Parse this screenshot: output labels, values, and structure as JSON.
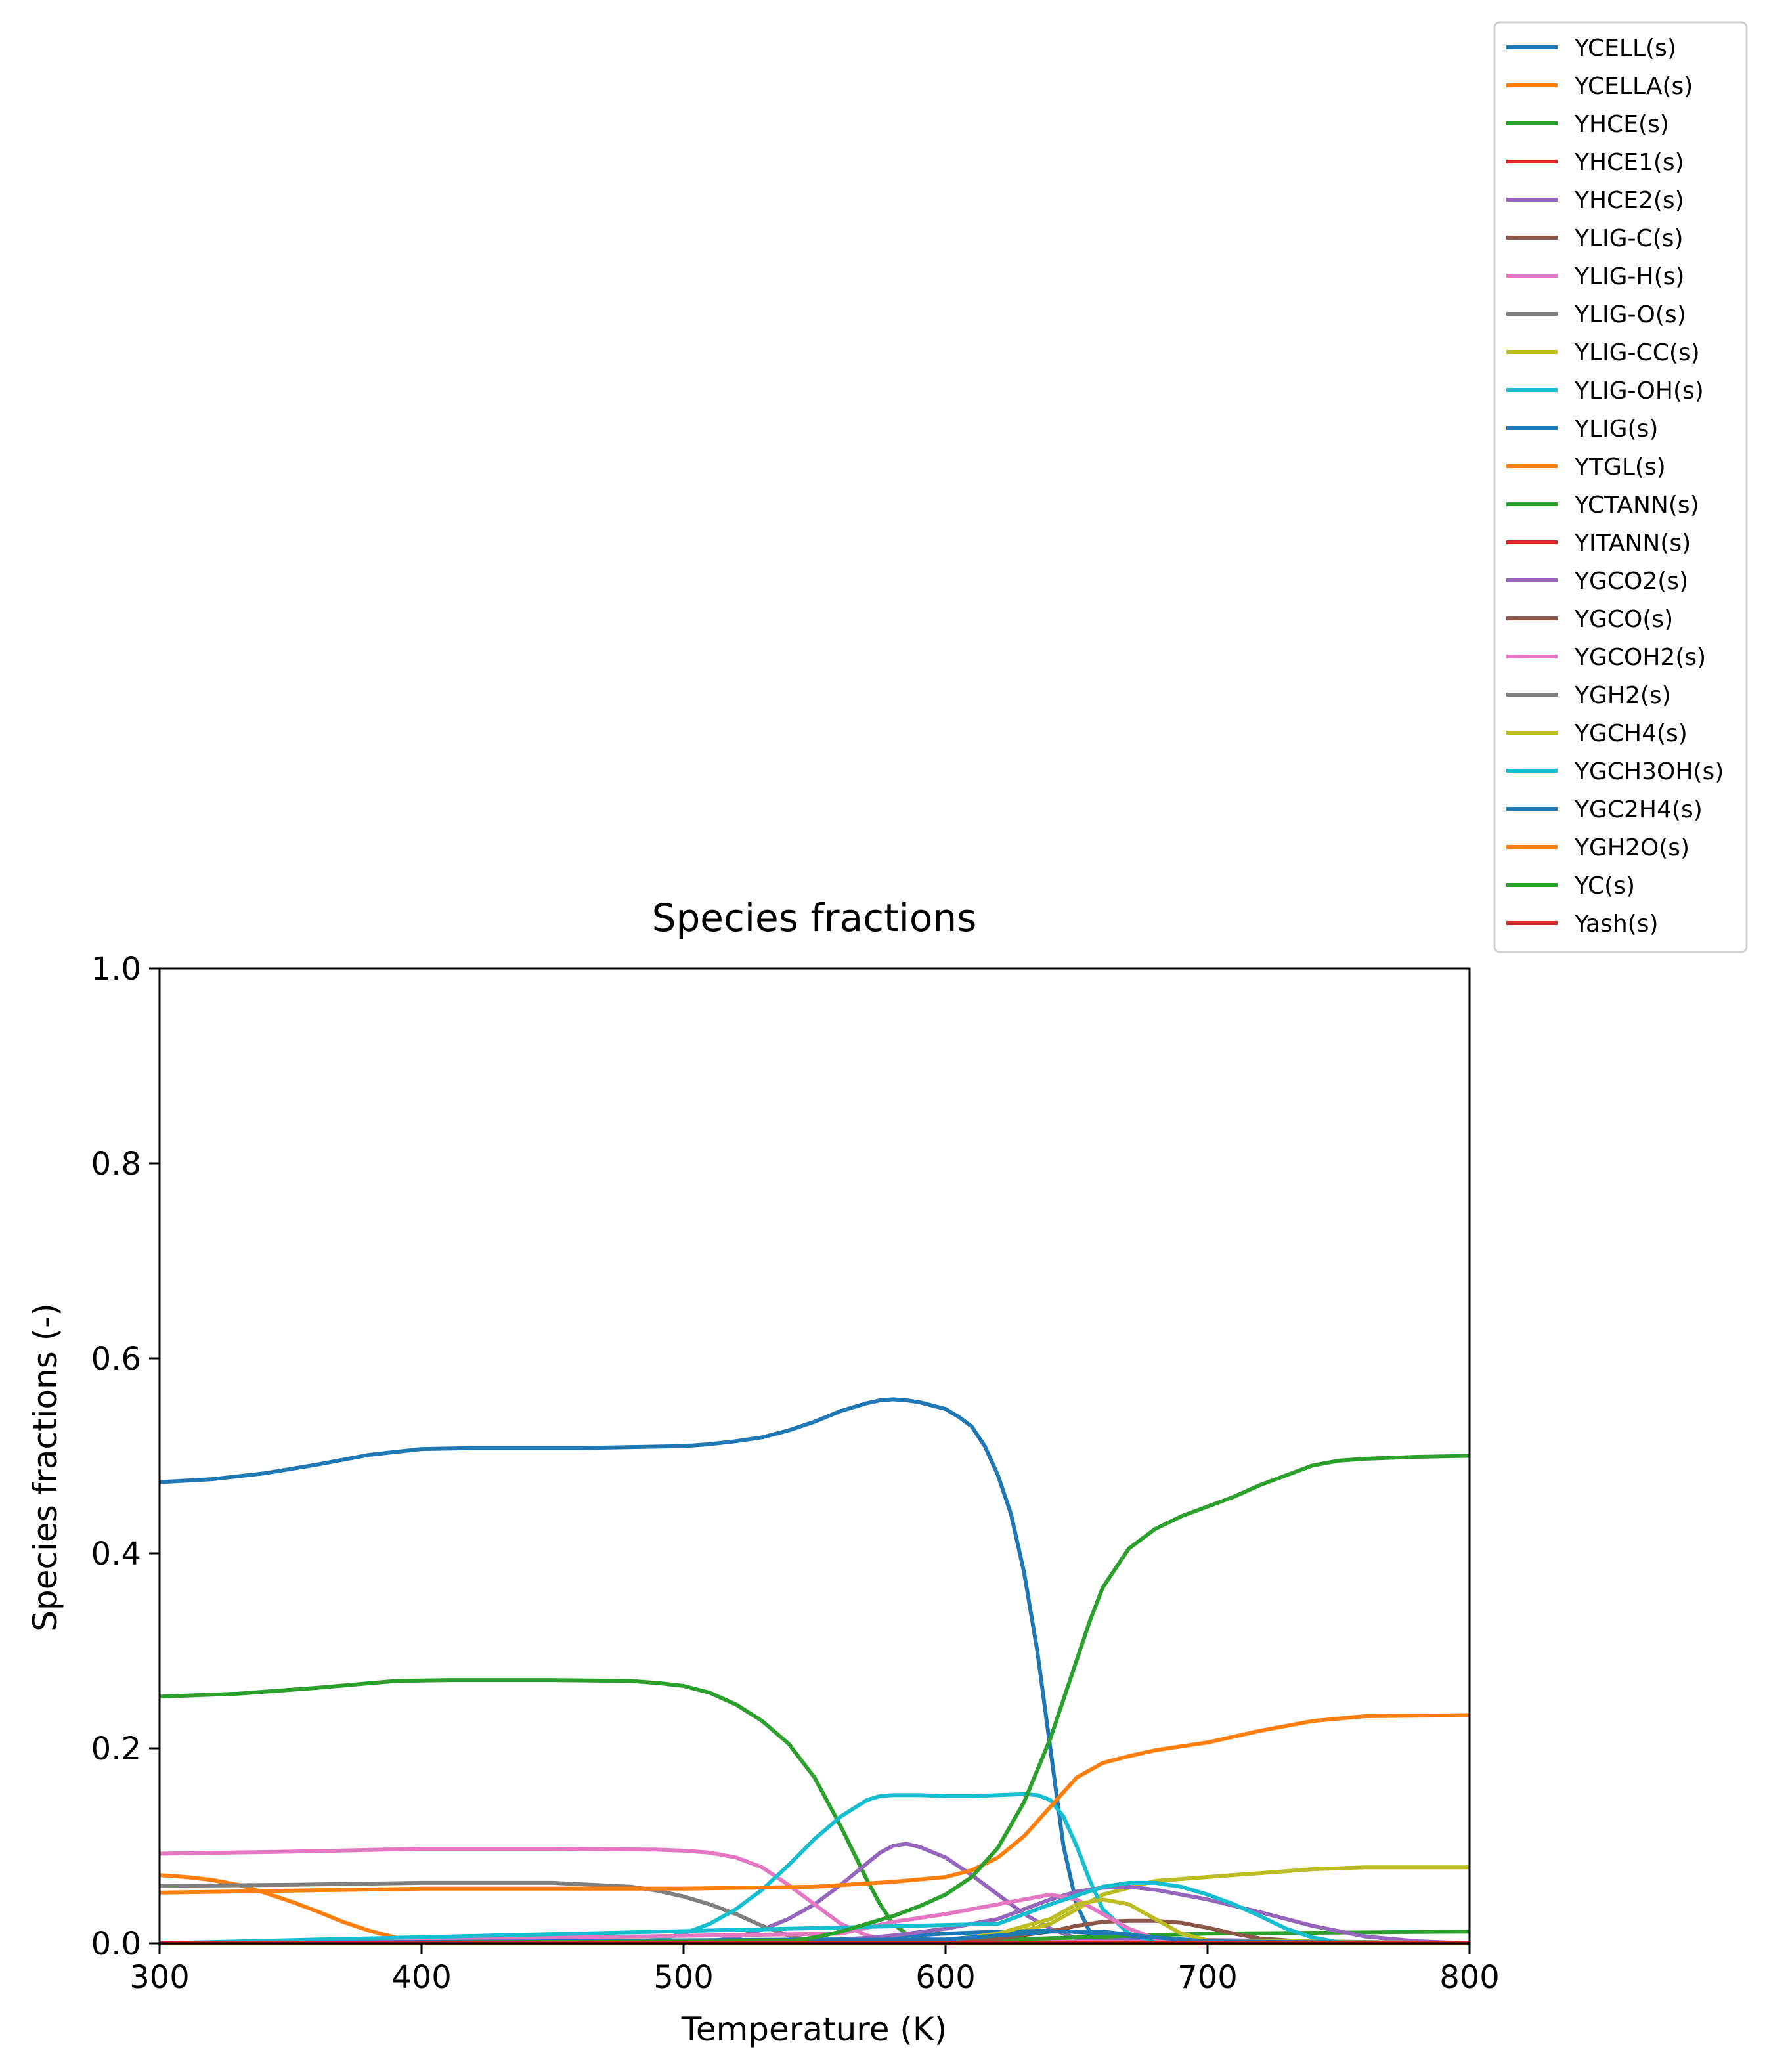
{
  "chart_data": {
    "type": "line",
    "title": "Species fractions",
    "xlabel": "Temperature (K)",
    "ylabel": "Species fractions (-)",
    "xlim": [
      300,
      800
    ],
    "ylim": [
      0,
      1.0
    ],
    "xticks": [
      "300",
      "400",
      "500",
      "600",
      "700",
      "800"
    ],
    "yticks": [
      "0.0",
      "0.2",
      "0.4",
      "0.6",
      "0.8",
      "1.0"
    ],
    "grid": false,
    "legend_placement": "top-right, outside axes",
    "series": [
      {
        "name": "YCELL(s)",
        "color": "#1f77b4",
        "x": [
          300,
          320,
          340,
          360,
          380,
          400,
          420,
          440,
          460,
          480,
          500,
          510,
          520,
          530,
          540,
          550,
          560,
          570,
          575,
          580,
          585,
          590,
          600,
          605,
          610,
          615,
          620,
          625,
          630,
          635,
          640,
          645,
          650,
          655,
          660,
          665,
          670,
          700,
          800
        ],
        "y": [
          0.473,
          0.476,
          0.482,
          0.491,
          0.501,
          0.507,
          0.508,
          0.508,
          0.508,
          0.509,
          0.51,
          0.512,
          0.515,
          0.519,
          0.526,
          0.535,
          0.546,
          0.554,
          0.557,
          0.558,
          0.557,
          0.555,
          0.548,
          0.54,
          0.53,
          0.51,
          0.48,
          0.44,
          0.38,
          0.3,
          0.2,
          0.1,
          0.04,
          0.012,
          0.004,
          0.002,
          0.001,
          0.0,
          0.0
        ]
      },
      {
        "name": "YCELLA(s)",
        "color": "#ff7f0e",
        "x": [
          300,
          310,
          320,
          330,
          340,
          350,
          360,
          370,
          380,
          390,
          400,
          410,
          800
        ],
        "y": [
          0.07,
          0.068,
          0.065,
          0.06,
          0.052,
          0.043,
          0.033,
          0.022,
          0.013,
          0.006,
          0.002,
          0.0,
          0.0
        ]
      },
      {
        "name": "YHCE(s)",
        "color": "#2ca02c",
        "x": [
          300,
          330,
          360,
          390,
          410,
          450,
          480,
          490,
          500,
          510,
          520,
          530,
          540,
          550,
          560,
          570,
          575,
          580,
          585,
          590,
          600,
          800
        ],
        "y": [
          0.253,
          0.256,
          0.262,
          0.269,
          0.27,
          0.27,
          0.269,
          0.267,
          0.264,
          0.257,
          0.245,
          0.228,
          0.205,
          0.17,
          0.12,
          0.065,
          0.04,
          0.02,
          0.01,
          0.005,
          0.002,
          0.0
        ]
      },
      {
        "name": "YHCE1(s)",
        "color": "#d62728",
        "x": [
          300,
          800
        ],
        "y": [
          0.0,
          0.0
        ]
      },
      {
        "name": "YHCE2(s)",
        "color": "#9467bd",
        "x": [
          300,
          500,
          510,
          520,
          530,
          540,
          550,
          560,
          570,
          575,
          580,
          585,
          590,
          600,
          610,
          620,
          630,
          640,
          650,
          800
        ],
        "y": [
          0.0,
          0.0,
          0.002,
          0.006,
          0.014,
          0.025,
          0.04,
          0.06,
          0.082,
          0.093,
          0.1,
          0.102,
          0.099,
          0.088,
          0.07,
          0.05,
          0.03,
          0.015,
          0.005,
          0.0
        ]
      },
      {
        "name": "YLIG-C(s)",
        "color": "#8c564b",
        "x": [
          300,
          800
        ],
        "y": [
          0.0,
          0.0
        ]
      },
      {
        "name": "YLIG-H(s)",
        "color": "#e377c2",
        "x": [
          300,
          350,
          400,
          450,
          490,
          500,
          510,
          520,
          530,
          540,
          550,
          560,
          570,
          580,
          800
        ],
        "y": [
          0.092,
          0.094,
          0.097,
          0.097,
          0.096,
          0.095,
          0.093,
          0.088,
          0.078,
          0.06,
          0.04,
          0.02,
          0.008,
          0.002,
          0.0
        ]
      },
      {
        "name": "YLIG-O(s)",
        "color": "#7f7f7f",
        "x": [
          300,
          350,
          400,
          450,
          480,
          490,
          500,
          510,
          520,
          530,
          540,
          550,
          560,
          800
        ],
        "y": [
          0.059,
          0.06,
          0.062,
          0.062,
          0.058,
          0.054,
          0.048,
          0.04,
          0.03,
          0.018,
          0.008,
          0.002,
          0.0,
          0.0
        ]
      },
      {
        "name": "YLIG-CC(s)",
        "color": "#bcbd22",
        "x": [
          300,
          600,
          620,
          640,
          660,
          680,
          700,
          720,
          740,
          760,
          800
        ],
        "y": [
          0.0,
          0.002,
          0.006,
          0.02,
          0.05,
          0.064,
          0.068,
          0.072,
          0.076,
          0.078,
          0.078
        ]
      },
      {
        "name": "YLIG-OH(s)",
        "color": "#17becf",
        "x": [
          300,
          480,
          490,
          500,
          510,
          520,
          530,
          540,
          550,
          560,
          570,
          575,
          580,
          590,
          600,
          610,
          620,
          630,
          635,
          640,
          645,
          650,
          655,
          660,
          670,
          680,
          800
        ],
        "y": [
          0.0,
          0.0,
          0.004,
          0.01,
          0.02,
          0.035,
          0.055,
          0.08,
          0.107,
          0.13,
          0.147,
          0.151,
          0.152,
          0.152,
          0.151,
          0.151,
          0.152,
          0.153,
          0.152,
          0.147,
          0.13,
          0.1,
          0.065,
          0.035,
          0.01,
          0.002,
          0.0
        ]
      },
      {
        "name": "YLIG(s)",
        "color": "#1f77b4",
        "x": [
          300,
          560,
          580,
          600,
          620,
          640,
          660,
          680,
          700,
          800
        ],
        "y": [
          0.0,
          0.004,
          0.007,
          0.01,
          0.012,
          0.013,
          0.01,
          0.005,
          0.002,
          0.0
        ]
      },
      {
        "name": "YTGL(s)",
        "color": "#ff7f0e",
        "x": [
          300,
          350,
          400,
          450,
          500,
          550,
          580,
          600,
          610,
          620,
          630,
          640,
          650,
          660,
          670,
          680,
          700,
          720,
          740,
          760,
          800
        ],
        "y": [
          0.052,
          0.054,
          0.056,
          0.056,
          0.056,
          0.058,
          0.063,
          0.068,
          0.075,
          0.088,
          0.11,
          0.14,
          0.17,
          0.185,
          0.192,
          0.198,
          0.206,
          0.218,
          0.228,
          0.233,
          0.234
        ]
      },
      {
        "name": "YCTANN(s)",
        "color": "#2ca02c",
        "x": [
          300,
          560,
          600,
          650,
          700,
          800
        ],
        "y": [
          0.0,
          0.0,
          0.002,
          0.006,
          0.01,
          0.012
        ]
      },
      {
        "name": "YITANN(s)",
        "color": "#d62728",
        "x": [
          300,
          800
        ],
        "y": [
          0.0,
          0.0
        ]
      },
      {
        "name": "YGCO2(s)",
        "color": "#9467bd",
        "x": [
          300,
          560,
          580,
          600,
          620,
          640,
          650,
          660,
          670,
          680,
          700,
          720,
          740,
          760,
          780,
          800
        ],
        "y": [
          0.0,
          0.003,
          0.008,
          0.015,
          0.025,
          0.045,
          0.053,
          0.057,
          0.058,
          0.055,
          0.045,
          0.032,
          0.018,
          0.007,
          0.002,
          0.0
        ]
      },
      {
        "name": "YGCO(s)",
        "color": "#8c564b",
        "x": [
          300,
          600,
          620,
          640,
          650,
          660,
          670,
          680,
          690,
          700,
          710,
          720,
          740,
          800
        ],
        "y": [
          0.0,
          0.002,
          0.005,
          0.012,
          0.018,
          0.022,
          0.023,
          0.023,
          0.021,
          0.016,
          0.01,
          0.005,
          0.001,
          0.0
        ]
      },
      {
        "name": "YGCOH2(s)",
        "color": "#e377c2",
        "x": [
          300,
          560,
          580,
          600,
          620,
          640,
          650,
          660,
          670,
          680,
          690,
          800
        ],
        "y": [
          0.0,
          0.01,
          0.022,
          0.03,
          0.04,
          0.05,
          0.045,
          0.03,
          0.015,
          0.005,
          0.001,
          0.0
        ]
      },
      {
        "name": "YGH2(s)",
        "color": "#7f7f7f",
        "x": [
          300,
          800
        ],
        "y": [
          0.0,
          0.0
        ]
      },
      {
        "name": "YGCH4(s)",
        "color": "#bcbd22",
        "x": [
          300,
          600,
          620,
          640,
          650,
          660,
          670,
          680,
          690,
          700,
          800
        ],
        "y": [
          0.0,
          0.003,
          0.01,
          0.025,
          0.04,
          0.045,
          0.04,
          0.025,
          0.01,
          0.003,
          0.0
        ]
      },
      {
        "name": "YGCH3OH(s)",
        "color": "#17becf",
        "x": [
          300,
          620,
          640,
          660,
          670,
          680,
          690,
          700,
          710,
          720,
          730,
          740,
          750,
          800
        ],
        "y": [
          0.0,
          0.02,
          0.04,
          0.058,
          0.062,
          0.062,
          0.058,
          0.05,
          0.04,
          0.028,
          0.015,
          0.006,
          0.001,
          0.0
        ]
      },
      {
        "name": "YGC2H4(s)",
        "color": "#1f77b4",
        "x": [
          300,
          600,
          620,
          640,
          660,
          680,
          700,
          800
        ],
        "y": [
          0.0,
          0.004,
          0.008,
          0.012,
          0.012,
          0.006,
          0.002,
          0.0
        ]
      },
      {
        "name": "YGH2O(s)",
        "color": "#ff7f0e",
        "x": [
          300,
          800
        ],
        "y": [
          0.0,
          0.0
        ]
      },
      {
        "name": "YC(s)",
        "color": "#2ca02c",
        "x": [
          300,
          540,
          550,
          560,
          570,
          580,
          590,
          600,
          610,
          620,
          630,
          640,
          650,
          655,
          660,
          665,
          670,
          680,
          690,
          700,
          710,
          720,
          730,
          740,
          750,
          760,
          780,
          800
        ],
        "y": [
          0.0,
          0.002,
          0.006,
          0.012,
          0.02,
          0.028,
          0.038,
          0.05,
          0.068,
          0.098,
          0.145,
          0.21,
          0.29,
          0.33,
          0.365,
          0.385,
          0.405,
          0.425,
          0.438,
          0.448,
          0.458,
          0.47,
          0.48,
          0.49,
          0.495,
          0.497,
          0.499,
          0.5
        ]
      },
      {
        "name": "Yash(s)",
        "color": "#d62728",
        "x": [
          300,
          800
        ],
        "y": [
          0.0,
          0.0
        ]
      }
    ]
  }
}
